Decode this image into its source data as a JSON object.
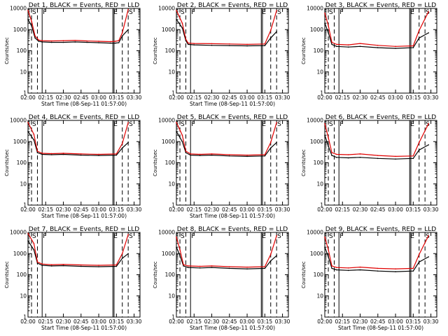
{
  "chart_data": [
    {
      "type": "line",
      "title": "Det 1, BLACK = Events, RED = LLD",
      "xlabel": "Start Time (08-Sep-11 01:57:00)",
      "ylabel": "Counts/sec",
      "yscale": "log",
      "ylim": [
        1,
        10000
      ],
      "xlim": [
        "02:00",
        "03:35"
      ],
      "xticks": [
        "02:00",
        "02:15",
        "02:30",
        "02:45",
        "03:00",
        "03:15",
        "03:30"
      ],
      "yticks": [
        "1",
        "10",
        "100",
        "1000",
        "10000"
      ],
      "grid": false,
      "flags": [
        "S",
        "F",
        "E",
        "S"
      ],
      "series": [
        {
          "color": "#000000",
          "x": [
            "02:00",
            "02:03",
            "02:06",
            "02:09",
            "02:12",
            "02:20",
            "02:30",
            "02:40",
            "02:50",
            "03:00",
            "03:10",
            "03:14",
            "03:17",
            "03:20",
            "03:25"
          ],
          "y": [
            3000,
            1500,
            400,
            280,
            260,
            250,
            250,
            260,
            250,
            240,
            230,
            230,
            240,
            500,
            1000
          ]
        },
        {
          "color": "#e00000",
          "x": [
            "02:00",
            "02:03",
            "02:06",
            "02:09",
            "02:12",
            "02:20",
            "02:30",
            "02:40",
            "02:50",
            "03:00",
            "03:10",
            "03:14",
            "03:17",
            "03:20",
            "03:25"
          ],
          "y": [
            8000,
            2500,
            500,
            320,
            300,
            290,
            300,
            310,
            290,
            280,
            270,
            280,
            300,
            700,
            9000
          ]
        }
      ]
    },
    {
      "type": "line",
      "title": "Det 2, BLACK = Events, RED = LLD",
      "xlabel": "Start Time (08-Sep-11 01:57:00)",
      "ylabel": "Counts/sec",
      "yscale": "log",
      "ylim": [
        1,
        10000
      ],
      "xlim": [
        "02:00",
        "03:35"
      ],
      "xticks": [
        "02:00",
        "02:15",
        "02:30",
        "02:45",
        "03:00",
        "03:15",
        "03:30"
      ],
      "yticks": [
        "1",
        "10",
        "100",
        "1000",
        "10000"
      ],
      "grid": false,
      "flags": [
        "S",
        "F",
        "E",
        "S"
      ],
      "series": [
        {
          "color": "#000000",
          "x": [
            "02:00",
            "02:05",
            "02:08",
            "02:10",
            "02:15",
            "02:30",
            "02:45",
            "03:00",
            "03:15",
            "03:20",
            "03:25"
          ],
          "y": [
            3000,
            1200,
            300,
            200,
            190,
            180,
            175,
            170,
            175,
            400,
            800
          ]
        },
        {
          "color": "#e00000",
          "x": [
            "02:00",
            "02:05",
            "02:08",
            "02:10",
            "02:15",
            "02:30",
            "02:45",
            "03:00",
            "03:15",
            "03:20",
            "03:25"
          ],
          "y": [
            8000,
            2000,
            350,
            230,
            220,
            215,
            210,
            200,
            210,
            900,
            8000
          ]
        }
      ]
    },
    {
      "type": "line",
      "title": "Det 3, BLACK = Events, RED = LLD",
      "xlabel": "",
      "ylabel": "Counts/sec",
      "yscale": "log",
      "ylim": [
        1,
        10000
      ],
      "xlim": [
        "02:00",
        "03:35"
      ],
      "xticks": [
        "02:00",
        "02:15",
        "02:30",
        "02:45",
        "03:00",
        "03:15",
        "03:30"
      ],
      "yticks": [
        "1",
        "10",
        "100",
        "1000",
        "10000"
      ],
      "grid": false,
      "flags": [
        "S",
        "F",
        "E",
        "S"
      ],
      "series": [
        {
          "color": "#000000",
          "x": [
            "02:00",
            "02:03",
            "02:06",
            "02:10",
            "02:20",
            "02:30",
            "02:45",
            "03:00",
            "03:15",
            "03:20",
            "03:28"
          ],
          "y": [
            2000,
            700,
            200,
            160,
            150,
            160,
            140,
            130,
            140,
            400,
            700
          ]
        },
        {
          "color": "#e00000",
          "x": [
            "02:00",
            "02:03",
            "02:06",
            "02:10",
            "02:20",
            "02:30",
            "02:45",
            "03:00",
            "03:15",
            "03:20",
            "03:28"
          ],
          "y": [
            6000,
            1500,
            250,
            200,
            190,
            220,
            180,
            160,
            170,
            900,
            7000
          ]
        }
      ]
    },
    {
      "type": "line",
      "title": "Det 4, BLACK = Events, RED = LLD",
      "xlabel": "Start Time (08-Sep-11 01:57:00)",
      "ylabel": "Counts/sec",
      "yscale": "log",
      "ylim": [
        1,
        10000
      ],
      "xlim": [
        "02:00",
        "03:35"
      ],
      "xticks": [
        "02:00",
        "02:15",
        "02:30",
        "02:45",
        "03:00",
        "03:15",
        "03:30"
      ],
      "yticks": [
        "1",
        "10",
        "100",
        "1000",
        "10000"
      ],
      "grid": false,
      "flags": [
        "S",
        "F",
        "E",
        "S"
      ],
      "series": [
        {
          "color": "#000000",
          "x": [
            "02:00",
            "02:05",
            "02:08",
            "02:12",
            "02:20",
            "02:30",
            "02:45",
            "03:00",
            "03:15",
            "03:20",
            "03:25"
          ],
          "y": [
            3000,
            1200,
            300,
            250,
            240,
            250,
            230,
            220,
            230,
            500,
            900
          ]
        },
        {
          "color": "#e00000",
          "x": [
            "02:00",
            "02:05",
            "02:08",
            "02:12",
            "02:20",
            "02:30",
            "02:45",
            "03:00",
            "03:15",
            "03:20",
            "03:25"
          ],
          "y": [
            8000,
            2200,
            350,
            280,
            270,
            280,
            260,
            250,
            260,
            800,
            8000
          ]
        }
      ]
    },
    {
      "type": "line",
      "title": "Det 5, BLACK = Events, RED = LLD",
      "xlabel": "Start Time (08-Sep-11 01:57:00)",
      "ylabel": "Counts/sec",
      "yscale": "log",
      "ylim": [
        1,
        10000
      ],
      "xlim": [
        "02:00",
        "03:35"
      ],
      "xticks": [
        "02:00",
        "02:15",
        "02:30",
        "02:45",
        "03:00",
        "03:15",
        "03:30"
      ],
      "yticks": [
        "1",
        "10",
        "100",
        "1000",
        "10000"
      ],
      "grid": false,
      "flags": [
        "S",
        "F",
        "E",
        "S"
      ],
      "series": [
        {
          "color": "#000000",
          "x": [
            "02:00",
            "02:05",
            "02:08",
            "02:12",
            "02:20",
            "02:30",
            "02:45",
            "03:00",
            "03:15",
            "03:20",
            "03:25"
          ],
          "y": [
            3000,
            1000,
            300,
            230,
            220,
            230,
            210,
            200,
            210,
            500,
            900
          ]
        },
        {
          "color": "#e00000",
          "x": [
            "02:00",
            "02:05",
            "02:08",
            "02:12",
            "02:20",
            "02:30",
            "02:45",
            "03:00",
            "03:15",
            "03:20",
            "03:25"
          ],
          "y": [
            8000,
            2000,
            350,
            260,
            250,
            260,
            240,
            230,
            240,
            900,
            8000
          ]
        }
      ]
    },
    {
      "type": "line",
      "title": "Det 6, BLACK = Events, RED = LLD",
      "xlabel": "",
      "ylabel": "Counts/sec",
      "yscale": "log",
      "ylim": [
        1,
        10000
      ],
      "xlim": [
        "02:00",
        "03:35"
      ],
      "xticks": [
        "02:00",
        "02:15",
        "02:30",
        "02:45",
        "03:00",
        "03:15",
        "03:30"
      ],
      "yticks": [
        "1",
        "10",
        "100",
        "1000",
        "10000"
      ],
      "grid": false,
      "flags": [
        "S",
        "F",
        "E",
        "S"
      ],
      "series": [
        {
          "color": "#000000",
          "x": [
            "02:00",
            "02:03",
            "02:06",
            "02:10",
            "02:20",
            "02:30",
            "02:45",
            "03:00",
            "03:15",
            "03:20",
            "03:28"
          ],
          "y": [
            2000,
            600,
            220,
            180,
            170,
            180,
            160,
            150,
            160,
            400,
            700
          ]
        },
        {
          "color": "#e00000",
          "x": [
            "02:00",
            "02:03",
            "02:06",
            "02:10",
            "02:20",
            "02:30",
            "02:45",
            "03:00",
            "03:15",
            "03:20",
            "03:28"
          ],
          "y": [
            7000,
            1500,
            300,
            250,
            240,
            260,
            220,
            200,
            210,
            900,
            7000
          ]
        }
      ]
    },
    {
      "type": "line",
      "title": "Det 7, BLACK = Events, RED = LLD",
      "xlabel": "Start Time (08-Sep-11 01:57:00)",
      "ylabel": "Counts/sec",
      "yscale": "log",
      "ylim": [
        1,
        10000
      ],
      "xlim": [
        "02:00",
        "03:35"
      ],
      "xticks": [
        "02:00",
        "02:15",
        "02:30",
        "02:45",
        "03:00",
        "03:15",
        "03:30"
      ],
      "yticks": [
        "1",
        "10",
        "100",
        "1000",
        "10000"
      ],
      "grid": false,
      "flags": [
        "S",
        "F",
        "E",
        "S"
      ],
      "series": [
        {
          "color": "#000000",
          "x": [
            "02:00",
            "02:05",
            "02:08",
            "02:12",
            "02:20",
            "02:30",
            "02:45",
            "03:00",
            "03:15",
            "03:20",
            "03:25"
          ],
          "y": [
            4000,
            1500,
            350,
            280,
            260,
            270,
            250,
            240,
            250,
            600,
            1000
          ]
        },
        {
          "color": "#e00000",
          "x": [
            "02:00",
            "02:05",
            "02:08",
            "02:12",
            "02:20",
            "02:30",
            "02:45",
            "03:00",
            "03:15",
            "03:20",
            "03:25"
          ],
          "y": [
            9000,
            3000,
            400,
            320,
            300,
            310,
            290,
            280,
            290,
            1000,
            8000
          ]
        }
      ]
    },
    {
      "type": "line",
      "title": "Det 8, BLACK = Events, RED = LLD",
      "xlabel": "Start Time (08-Sep-11 01:57:00)",
      "ylabel": "Counts/sec",
      "yscale": "log",
      "ylim": [
        1,
        10000
      ],
      "xlim": [
        "02:00",
        "03:35"
      ],
      "xticks": [
        "02:00",
        "02:15",
        "02:30",
        "02:45",
        "03:00",
        "03:15",
        "03:30"
      ],
      "yticks": [
        "1",
        "10",
        "100",
        "1000",
        "10000"
      ],
      "grid": false,
      "flags": [
        "S",
        "F",
        "E",
        "S"
      ],
      "series": [
        {
          "color": "#000000",
          "x": [
            "02:00",
            "02:03",
            "02:06",
            "02:10",
            "02:20",
            "02:30",
            "02:45",
            "03:00",
            "03:15",
            "03:20",
            "03:25"
          ],
          "y": [
            2000,
            800,
            260,
            220,
            210,
            220,
            200,
            190,
            200,
            450,
            800
          ]
        },
        {
          "color": "#e00000",
          "x": [
            "02:00",
            "02:03",
            "02:06",
            "02:10",
            "02:20",
            "02:30",
            "02:45",
            "03:00",
            "03:15",
            "03:20",
            "03:25"
          ],
          "y": [
            6000,
            1500,
            300,
            260,
            250,
            260,
            240,
            230,
            240,
            900,
            7000
          ]
        }
      ]
    },
    {
      "type": "line",
      "title": "Det 9, BLACK = Events, RED = LLD",
      "xlabel": "Start Time (08-Sep-11 01:57:00)",
      "ylabel": "Counts/sec",
      "yscale": "log",
      "ylim": [
        1,
        10000
      ],
      "xlim": [
        "02:00",
        "03:35"
      ],
      "xticks": [
        "02:00",
        "02:15",
        "02:30",
        "02:45",
        "03:00",
        "03:15",
        "03:30"
      ],
      "yticks": [
        "1",
        "10",
        "100",
        "1000",
        "10000"
      ],
      "grid": false,
      "flags": [
        "S",
        "F",
        "E",
        "S"
      ],
      "series": [
        {
          "color": "#000000",
          "x": [
            "02:00",
            "02:03",
            "02:06",
            "02:10",
            "02:20",
            "02:30",
            "02:45",
            "03:00",
            "03:15",
            "03:20",
            "03:28"
          ],
          "y": [
            2000,
            700,
            200,
            170,
            160,
            170,
            150,
            140,
            150,
            400,
            700
          ]
        },
        {
          "color": "#e00000",
          "x": [
            "02:00",
            "02:03",
            "02:06",
            "02:10",
            "02:20",
            "02:30",
            "02:45",
            "03:00",
            "03:15",
            "03:20",
            "03:28"
          ],
          "y": [
            6000,
            1500,
            260,
            220,
            210,
            230,
            200,
            190,
            200,
            900,
            7000
          ]
        }
      ]
    }
  ]
}
